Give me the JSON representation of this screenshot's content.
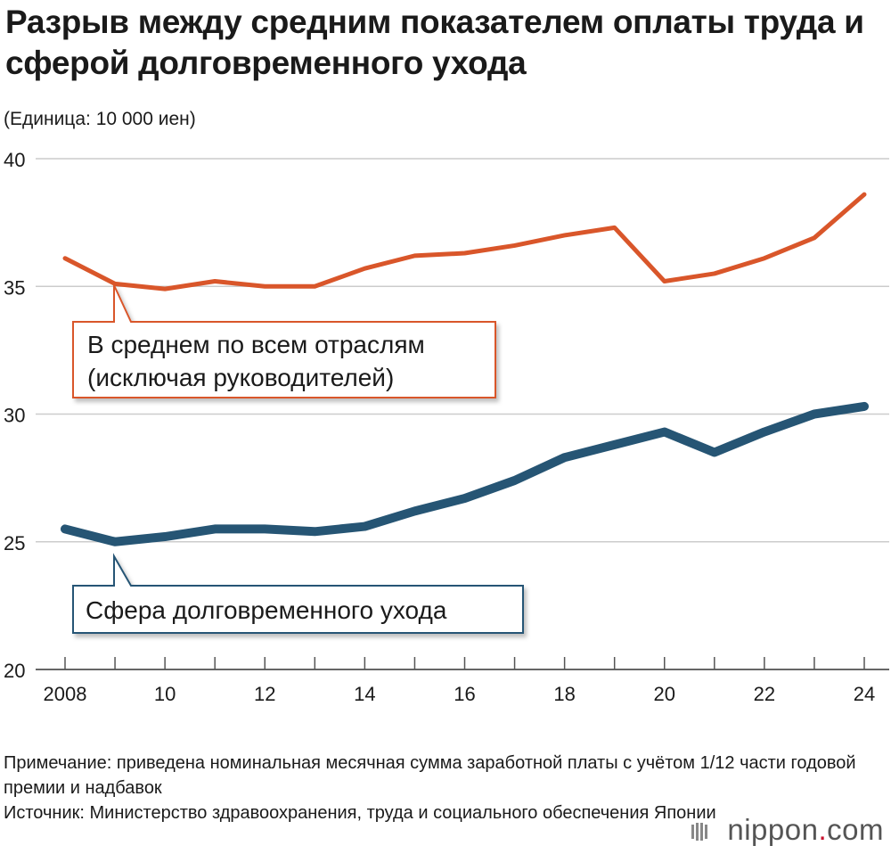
{
  "header": {
    "title": "Разрыв между средним показателем оплаты труда и сферой долговременного ухода",
    "unit": "(Единица: 10 000 иен)"
  },
  "footer": {
    "note": "Примечание: приведена номинальная месячная сумма заработной платы с учётом 1/12 части годовой премии и надбавок",
    "source": "Источник: Министерство здравоохранения, труда и социального обеспечения Японии",
    "brand_name": "nippon",
    "brand_dot": ".",
    "brand_tld": "com"
  },
  "colors": {
    "average": "#d9562a",
    "care": "#265574",
    "grid": "#cccccc"
  },
  "chart_data": {
    "type": "line",
    "title": "Разрыв между средним показателем оплаты труда и сферой долговременного ухода",
    "ylabel": "(Единица: 10 000 иен)",
    "ylim": [
      20,
      40
    ],
    "yticks": [
      20,
      25,
      30,
      35,
      40
    ],
    "ytick_labels": [
      "20",
      "25",
      "30",
      "35",
      "40"
    ],
    "x": [
      2008,
      2009,
      2010,
      2011,
      2012,
      2013,
      2014,
      2015,
      2016,
      2017,
      2018,
      2019,
      2020,
      2021,
      2022,
      2023,
      2024
    ],
    "xtick_labels": [
      {
        "year": 2008,
        "label": "2008"
      },
      {
        "year": 2010,
        "label": "10"
      },
      {
        "year": 2012,
        "label": "12"
      },
      {
        "year": 2014,
        "label": "14"
      },
      {
        "year": 2016,
        "label": "16"
      },
      {
        "year": 2018,
        "label": "18"
      },
      {
        "year": 2020,
        "label": "20"
      },
      {
        "year": 2022,
        "label": "22"
      },
      {
        "year": 2024,
        "label": "24"
      }
    ],
    "grid": true,
    "series": [
      {
        "name": "average",
        "legend_line1": "В среднем по всем отраслям",
        "legend_line2": "(исключая руководителей)",
        "values": [
          36.1,
          35.1,
          34.9,
          35.2,
          35.0,
          35.0,
          35.7,
          36.2,
          36.3,
          36.6,
          37.0,
          37.3,
          35.2,
          35.5,
          36.1,
          36.9,
          38.6
        ]
      },
      {
        "name": "care",
        "legend_line1": "Сфера долговременного ухода",
        "values": [
          25.5,
          25.0,
          25.2,
          25.5,
          25.5,
          25.4,
          25.6,
          26.2,
          26.7,
          27.4,
          28.3,
          28.8,
          29.3,
          28.5,
          29.3,
          30.0,
          30.3
        ]
      }
    ]
  }
}
